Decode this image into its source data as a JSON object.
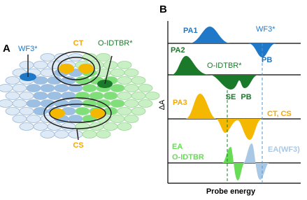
{
  "panel_a": {
    "label": "A",
    "wf3": "WF3*",
    "ct": "CT",
    "oidtbr": "O-IDTBR*",
    "cs": "CS"
  },
  "panel_b": {
    "label": "B",
    "y_axis": "ΔA",
    "x_axis": "Probe energy",
    "trace1": {
      "pa1": "PA1",
      "wf3": "WF3*",
      "pb": "PB"
    },
    "trace2": {
      "pa2": "PA2",
      "oidtbr": "O-IDTBR*",
      "se": "SE",
      "pb": "PB"
    },
    "trace3": {
      "pa3": "PA3",
      "ctcs": "CT, CS"
    },
    "trace4": {
      "ea": "EA",
      "oidtbr": "O-IDTBR",
      "eawf3": "EA(WF3)"
    }
  }
}
